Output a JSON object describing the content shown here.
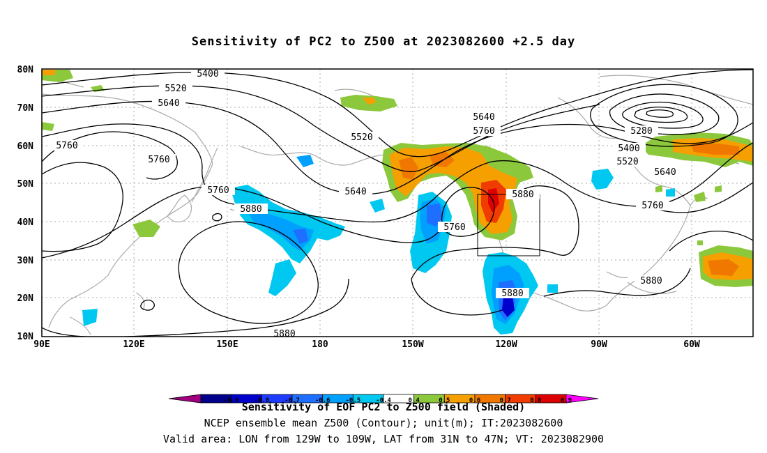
{
  "title": "Sensitivity of PC2 to Z500 at 2023082600 +2.5 day",
  "lat_labels": [
    "80N",
    "70N",
    "60N",
    "50N",
    "40N",
    "30N",
    "20N",
    "10N"
  ],
  "lon_labels": [
    "90E",
    "120E",
    "150E",
    "180",
    "150W",
    "120W",
    "90W",
    "60W"
  ],
  "contour_labels": [
    "5400",
    "5520",
    "5640",
    "5760",
    "5760",
    "5760",
    "5520",
    "5640",
    "5640",
    "5760",
    "5280",
    "5400",
    "5520",
    "5640",
    "5760",
    "5880",
    "5880",
    "5760",
    "5880",
    "5880",
    "5880"
  ],
  "colorbar": {
    "ticks": [
      "-0.9",
      "-0.8",
      "-0.7",
      "-0.6",
      "-0.5",
      "-0.4",
      "0.4",
      "0.5",
      "0.6",
      "0.7",
      "0.8",
      "0.9"
    ],
    "colors": [
      "#a0007f",
      "#00008b",
      "#0000cd",
      "#1e3cff",
      "#1e6eff",
      "#00a0ff",
      "#00c8f0",
      "#ffffff",
      "#8cc83c",
      "#f5a000",
      "#f07800",
      "#f03c00",
      "#dc0000",
      "#ff00ff"
    ]
  },
  "valid_area": {
    "lon_min": "129W",
    "lon_max": "109W",
    "lat_min": "31N",
    "lat_max": "47N"
  },
  "captions": [
    "Sensitivity of EOF PC2 to Z500 field (Shaded)",
    "NCEP ensemble mean Z500 (Contour); unit(m); IT:2023082600",
    "Valid area: LON from 129W to 109W, LAT from 31N to 47N; VT: 2023082900"
  ]
}
